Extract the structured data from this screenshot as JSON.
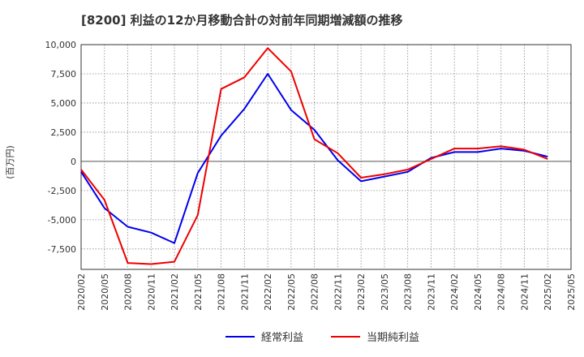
{
  "chart_data": {
    "type": "line",
    "title": "[8200]  利益の12か月移動合計の対前年同期増減額の推移",
    "ylabel": "(百万円)",
    "xlabel": "",
    "ylim": [
      -9250,
      10000
    ],
    "yticks": [
      10000,
      7500,
      5000,
      2500,
      0,
      -2500,
      -5000,
      -7500
    ],
    "ytick_labels": [
      "10,000",
      "7,500",
      "5,000",
      "2,500",
      "0",
      "-2,500",
      "-5,000",
      "-7,500"
    ],
    "categories": [
      "2020/02",
      "2020/05",
      "2020/08",
      "2020/11",
      "2021/02",
      "2021/05",
      "2021/08",
      "2021/11",
      "2022/02",
      "2022/05",
      "2022/08",
      "2022/11",
      "2023/02",
      "2023/05",
      "2023/08",
      "2023/11",
      "2024/02",
      "2024/05",
      "2024/08",
      "2024/11",
      "2025/02",
      "2025/05"
    ],
    "series": [
      {
        "name": "経常利益",
        "color": "#0000ee",
        "values": [
          -900,
          -4000,
          -5600,
          -6100,
          -7000,
          -1000,
          2200,
          4500,
          7500,
          4400,
          2700,
          100,
          -1700,
          -1300,
          -900,
          300,
          800,
          800,
          1100,
          900,
          400,
          null
        ]
      },
      {
        "name": "当期純利益",
        "color": "#ee0000",
        "values": [
          -700,
          -3300,
          -8700,
          -8800,
          -8600,
          -4600,
          6200,
          7200,
          9700,
          7700,
          1900,
          700,
          -1400,
          -1100,
          -700,
          200,
          1100,
          1100,
          1300,
          1000,
          200,
          null
        ]
      }
    ],
    "grid": true,
    "legend": "bottom-center"
  }
}
